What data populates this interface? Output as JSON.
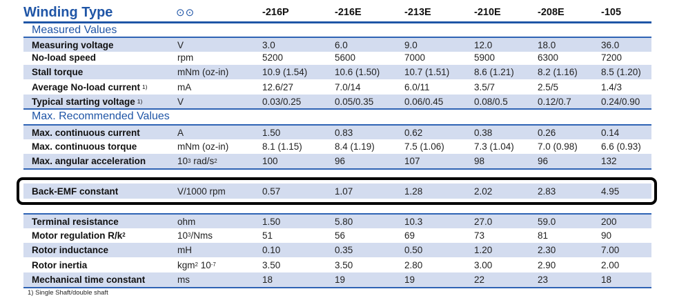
{
  "header": {
    "title": "Winding Type",
    "symbol": "⊙⊙",
    "columns": [
      "-216P",
      "-216E",
      "-213E",
      "-210E",
      "-208E",
      "-105"
    ]
  },
  "sections": {
    "measured": "Measured Values",
    "recommended": "Max. Recommended Values"
  },
  "rows": {
    "measuring_voltage": {
      "label": "Measuring voltage",
      "unit": "V",
      "values": [
        "3.0",
        "6.0",
        "9.0",
        "12.0",
        "18.0",
        "36.0"
      ]
    },
    "no_load_speed": {
      "label": "No-load speed",
      "unit": "rpm",
      "values": [
        "5200",
        "5600",
        "7000",
        "5900",
        "6300",
        "7200"
      ]
    },
    "stall_torque": {
      "label": "Stall torque",
      "unit": "mNm (oz-in)",
      "values": [
        "10.9 (1.54)",
        "10.6 (1.50)",
        "10.7 (1.51)",
        "8.6 (1.21)",
        "8.2 (1.16)",
        "8.5 (1.20)"
      ]
    },
    "avg_no_load_current": {
      "label": "Average No-load current",
      "footnote": "1)",
      "unit": "mA",
      "values": [
        "12.6/27",
        "7.0/14",
        "6.0/11",
        "3.5/7",
        "2.5/5",
        "1.4/3"
      ]
    },
    "typ_starting_voltage": {
      "label": "Typical starting voltage",
      "footnote": "1)",
      "unit": "V",
      "values": [
        "0.03/0.25",
        "0.05/0.35",
        "0.06/0.45",
        "0.08/0.5",
        "0.12/0.7",
        "0.24/0.90"
      ]
    },
    "max_cont_current": {
      "label": "Max. continuous current",
      "unit": "A",
      "values": [
        "1.50",
        "0.83",
        "0.62",
        "0.38",
        "0.26",
        "0.14"
      ]
    },
    "max_cont_torque": {
      "label": "Max. continuous torque",
      "unit": "mNm (oz-in)",
      "values": [
        "8.1 (1.15)",
        "8.4 (1.19)",
        "7.5 (1.06)",
        "7.3 (1.04)",
        "7.0 (0.98)",
        "6.6 (0.93)"
      ]
    },
    "max_ang_accel": {
      "label": "Max. angular acceleration",
      "unit_pre": "10",
      "unit_sup": "3",
      "unit_mid": " rad/s",
      "unit_sup2": "2",
      "values": [
        "100",
        "96",
        "107",
        "98",
        "96",
        "132"
      ]
    },
    "back_emf": {
      "label": "Back-EMF constant",
      "unit": "V/1000 rpm",
      "values": [
        "0.57",
        "1.07",
        "1.28",
        "2.02",
        "2.83",
        "4.95"
      ]
    },
    "terminal_res": {
      "label": "Terminal resistance",
      "unit": "ohm",
      "values": [
        "1.50",
        "5.80",
        "10.3",
        "27.0",
        "59.0",
        "200"
      ]
    },
    "motor_reg": {
      "label": "Motor regulation R/k",
      "label_sup": "2",
      "unit_pre": "10",
      "unit_sup": "3",
      "unit_mid": "/Nms",
      "values": [
        "51",
        "56",
        "69",
        "73",
        "81",
        "90"
      ]
    },
    "rotor_ind": {
      "label": "Rotor inductance",
      "unit": "mH",
      "values": [
        "0.10",
        "0.35",
        "0.50",
        "1.20",
        "2.30",
        "7.00"
      ]
    },
    "rotor_inertia": {
      "label": "Rotor inertia",
      "unit_pre": "kgm",
      "unit_sup": "2",
      "unit_mid": " 10",
      "unit_sup2": "-7",
      "values": [
        "3.50",
        "3.50",
        "2.80",
        "3.00",
        "2.90",
        "2.00"
      ]
    },
    "mech_time": {
      "label": "Mechanical time constant",
      "unit": "ms",
      "values": [
        "18",
        "19",
        "19",
        "22",
        "23",
        "18"
      ]
    }
  },
  "footnote": "1) Single Shaft/double shaft"
}
